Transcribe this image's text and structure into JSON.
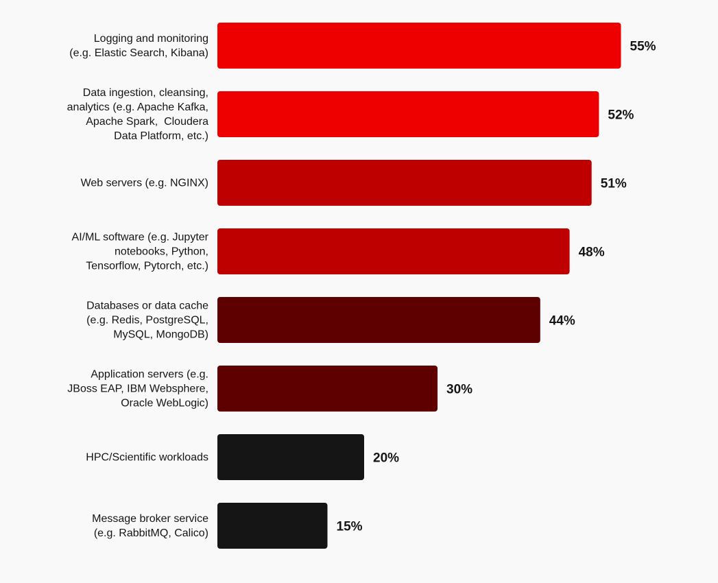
{
  "chart_data": {
    "type": "bar",
    "orientation": "horizontal",
    "title": "",
    "xlabel": "",
    "ylabel": "",
    "grid": false,
    "legend": "none",
    "xlim": [
      0,
      55
    ],
    "categories": [
      [
        "Logging and monitoring",
        "(e.g. Elastic Search, Kibana)"
      ],
      [
        "Data ingestion, cleansing,",
        "analytics (e.g. Apache Kafka,",
        "Apache Spark,  Cloudera",
        "Data Platform, etc.)"
      ],
      [
        "Web servers (e.g. NGINX)"
      ],
      [
        "AI/ML software (e.g. Jupyter",
        "notebooks, Python,",
        "Tensorflow, Pytorch, etc.)"
      ],
      [
        "Databases or data cache",
        "(e.g. Redis, PostgreSQL,",
        "MySQL, MongoDB)"
      ],
      [
        "Application servers (e.g.",
        "JBoss EAP, IBM Websphere,",
        "Oracle WebLogic)"
      ],
      [
        "HPC/Scientific workloads"
      ],
      [
        "Message broker service",
        "(e.g. RabbitMQ, Calico)"
      ]
    ],
    "values": [
      55,
      52,
      51,
      48,
      44,
      30,
      20,
      15
    ],
    "value_labels": [
      "55%",
      "52%",
      "51%",
      "48%",
      "44%",
      "30%",
      "20%",
      "15%"
    ],
    "colors": [
      "#ee0000",
      "#ee0000",
      "#be0000",
      "#be0000",
      "#5f0000",
      "#5f0000",
      "#151515",
      "#151515"
    ]
  }
}
